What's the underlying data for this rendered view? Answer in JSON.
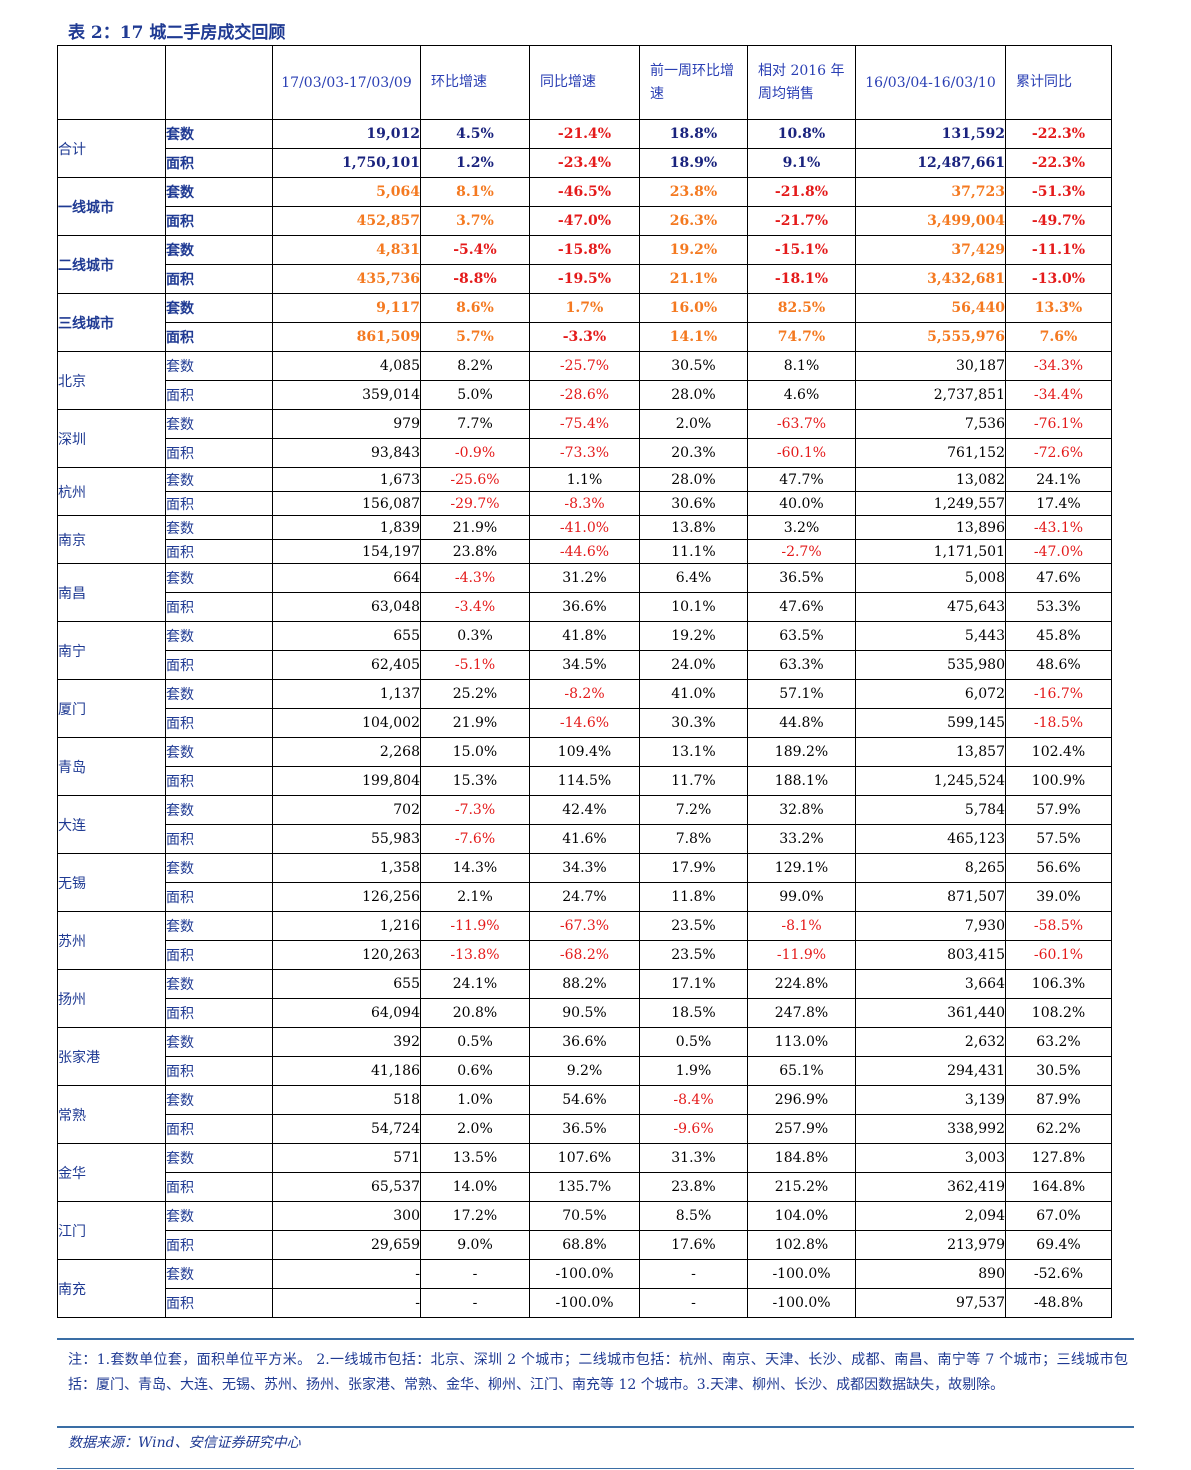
{
  "title": "表 2：17 城二手房成交回顾",
  "header": [
    "",
    "",
    "17/03/03-17/03/09",
    "环比增速",
    "同比增速",
    "前一周环比增速",
    "相对 2016 年周均销售",
    "16/03/04-16/03/10",
    "累计同比"
  ],
  "rows": [
    {
      "city": "合计",
      "style": "navy",
      "data": [
        {
          "metric": "套数",
          "v": [
            "19,012",
            "4.5%",
            "-21.4%",
            "18.8%",
            "10.8%",
            "131,592",
            "-22.3%"
          ],
          "c": [
            "n",
            "n",
            "r",
            "n",
            "n",
            "n",
            "r"
          ]
        },
        {
          "metric": "面积",
          "v": [
            "1,750,101",
            "1.2%",
            "-23.4%",
            "18.9%",
            "9.1%",
            "12,487,661",
            "-22.3%"
          ],
          "c": [
            "n",
            "n",
            "r",
            "n",
            "n",
            "n",
            "r"
          ]
        }
      ]
    },
    {
      "city": "一线城市",
      "style": "orange",
      "data": [
        {
          "metric": "套数",
          "v": [
            "5,064",
            "8.1%",
            "-46.5%",
            "23.8%",
            "-21.8%",
            "37,723",
            "-51.3%"
          ],
          "c": [
            "o",
            "o",
            "r",
            "o",
            "r",
            "o",
            "r"
          ]
        },
        {
          "metric": "面积",
          "v": [
            "452,857",
            "3.7%",
            "-47.0%",
            "26.3%",
            "-21.7%",
            "3,499,004",
            "-49.7%"
          ],
          "c": [
            "o",
            "o",
            "r",
            "o",
            "r",
            "o",
            "r"
          ]
        }
      ]
    },
    {
      "city": "二线城市",
      "style": "orange",
      "data": [
        {
          "metric": "套数",
          "v": [
            "4,831",
            "-5.4%",
            "-15.8%",
            "19.2%",
            "-15.1%",
            "37,429",
            "-11.1%"
          ],
          "c": [
            "o",
            "r",
            "r",
            "o",
            "r",
            "o",
            "r"
          ]
        },
        {
          "metric": "面积",
          "v": [
            "435,736",
            "-8.8%",
            "-19.5%",
            "21.1%",
            "-18.1%",
            "3,432,681",
            "-13.0%"
          ],
          "c": [
            "o",
            "r",
            "r",
            "o",
            "r",
            "o",
            "r"
          ]
        }
      ]
    },
    {
      "city": "三线城市",
      "style": "orange",
      "data": [
        {
          "metric": "套数",
          "v": [
            "9,117",
            "8.6%",
            "1.7%",
            "16.0%",
            "82.5%",
            "56,440",
            "13.3%"
          ],
          "c": [
            "o",
            "o",
            "o",
            "o",
            "o",
            "o",
            "o"
          ]
        },
        {
          "metric": "面积",
          "v": [
            "861,509",
            "5.7%",
            "-3.3%",
            "14.1%",
            "74.7%",
            "5,555,976",
            "7.6%"
          ],
          "c": [
            "o",
            "o",
            "r",
            "o",
            "o",
            "o",
            "o"
          ]
        }
      ]
    },
    {
      "city": "北京",
      "style": "plain",
      "data": [
        {
          "metric": "套数",
          "v": [
            "4,085",
            "8.2%",
            "-25.7%",
            "30.5%",
            "8.1%",
            "30,187",
            "-34.3%"
          ],
          "c": [
            "k",
            "k",
            "x",
            "k",
            "k",
            "k",
            "x"
          ]
        },
        {
          "metric": "面积",
          "v": [
            "359,014",
            "5.0%",
            "-28.6%",
            "28.0%",
            "4.6%",
            "2,737,851",
            "-34.4%"
          ],
          "c": [
            "k",
            "k",
            "x",
            "k",
            "k",
            "k",
            "x"
          ]
        }
      ]
    },
    {
      "city": "深圳",
      "style": "plain",
      "data": [
        {
          "metric": "套数",
          "v": [
            "979",
            "7.7%",
            "-75.4%",
            "2.0%",
            "-63.7%",
            "7,536",
            "-76.1%"
          ],
          "c": [
            "k",
            "k",
            "x",
            "k",
            "x",
            "k",
            "x"
          ]
        },
        {
          "metric": "面积",
          "v": [
            "93,843",
            "-0.9%",
            "-73.3%",
            "20.3%",
            "-60.1%",
            "761,152",
            "-72.6%"
          ],
          "c": [
            "k",
            "x",
            "x",
            "k",
            "x",
            "k",
            "x"
          ]
        }
      ]
    },
    {
      "city": "杭州",
      "style": "plain",
      "h": 24,
      "data": [
        {
          "metric": "套数",
          "v": [
            "1,673",
            "-25.6%",
            "1.1%",
            "28.0%",
            "47.7%",
            "13,082",
            "24.1%"
          ],
          "c": [
            "k",
            "x",
            "k",
            "k",
            "k",
            "k",
            "k"
          ]
        },
        {
          "metric": "面积",
          "v": [
            "156,087",
            "-29.7%",
            "-8.3%",
            "30.6%",
            "40.0%",
            "1,249,557",
            "17.4%"
          ],
          "c": [
            "k",
            "x",
            "x",
            "k",
            "k",
            "k",
            "k"
          ]
        }
      ]
    },
    {
      "city": "南京",
      "style": "plain",
      "h": 24,
      "data": [
        {
          "metric": "套数",
          "v": [
            "1,839",
            "21.9%",
            "-41.0%",
            "13.8%",
            "3.2%",
            "13,896",
            "-43.1%"
          ],
          "c": [
            "k",
            "k",
            "x",
            "k",
            "k",
            "k",
            "x"
          ]
        },
        {
          "metric": "面积",
          "v": [
            "154,197",
            "23.8%",
            "-44.6%",
            "11.1%",
            "-2.7%",
            "1,171,501",
            "-47.0%"
          ],
          "c": [
            "k",
            "k",
            "x",
            "k",
            "x",
            "k",
            "x"
          ]
        }
      ]
    },
    {
      "city": "南昌",
      "style": "plain",
      "data": [
        {
          "metric": "套数",
          "v": [
            "664",
            "-4.3%",
            "31.2%",
            "6.4%",
            "36.5%",
            "5,008",
            "47.6%"
          ],
          "c": [
            "k",
            "x",
            "k",
            "k",
            "k",
            "k",
            "k"
          ]
        },
        {
          "metric": "面积",
          "v": [
            "63,048",
            "-3.4%",
            "36.6%",
            "10.1%",
            "47.6%",
            "475,643",
            "53.3%"
          ],
          "c": [
            "k",
            "x",
            "k",
            "k",
            "k",
            "k",
            "k"
          ]
        }
      ]
    },
    {
      "city": "南宁",
      "style": "plain",
      "data": [
        {
          "metric": "套数",
          "v": [
            "655",
            "0.3%",
            "41.8%",
            "19.2%",
            "63.5%",
            "5,443",
            "45.8%"
          ],
          "c": [
            "k",
            "k",
            "k",
            "k",
            "k",
            "k",
            "k"
          ]
        },
        {
          "metric": "面积",
          "v": [
            "62,405",
            "-5.1%",
            "34.5%",
            "24.0%",
            "63.3%",
            "535,980",
            "48.6%"
          ],
          "c": [
            "k",
            "x",
            "k",
            "k",
            "k",
            "k",
            "k"
          ]
        }
      ]
    },
    {
      "city": "厦门",
      "style": "plain",
      "data": [
        {
          "metric": "套数",
          "v": [
            "1,137",
            "25.2%",
            "-8.2%",
            "41.0%",
            "57.1%",
            "6,072",
            "-16.7%"
          ],
          "c": [
            "k",
            "k",
            "x",
            "k",
            "k",
            "k",
            "x"
          ]
        },
        {
          "metric": "面积",
          "v": [
            "104,002",
            "21.9%",
            "-14.6%",
            "30.3%",
            "44.8%",
            "599,145",
            "-18.5%"
          ],
          "c": [
            "k",
            "k",
            "x",
            "k",
            "k",
            "k",
            "x"
          ]
        }
      ]
    },
    {
      "city": "青岛",
      "style": "plain",
      "data": [
        {
          "metric": "套数",
          "v": [
            "2,268",
            "15.0%",
            "109.4%",
            "13.1%",
            "189.2%",
            "13,857",
            "102.4%"
          ],
          "c": [
            "k",
            "k",
            "k",
            "k",
            "k",
            "k",
            "k"
          ]
        },
        {
          "metric": "面积",
          "v": [
            "199,804",
            "15.3%",
            "114.5%",
            "11.7%",
            "188.1%",
            "1,245,524",
            "100.9%"
          ],
          "c": [
            "k",
            "k",
            "k",
            "k",
            "k",
            "k",
            "k"
          ]
        }
      ]
    },
    {
      "city": "大连",
      "style": "plain",
      "data": [
        {
          "metric": "套数",
          "v": [
            "702",
            "-7.3%",
            "42.4%",
            "7.2%",
            "32.8%",
            "5,784",
            "57.9%"
          ],
          "c": [
            "k",
            "x",
            "k",
            "k",
            "k",
            "k",
            "k"
          ]
        },
        {
          "metric": "面积",
          "v": [
            "55,983",
            "-7.6%",
            "41.6%",
            "7.8%",
            "33.2%",
            "465,123",
            "57.5%"
          ],
          "c": [
            "k",
            "x",
            "k",
            "k",
            "k",
            "k",
            "k"
          ]
        }
      ]
    },
    {
      "city": "无锡",
      "style": "plain",
      "data": [
        {
          "metric": "套数",
          "v": [
            "1,358",
            "14.3%",
            "34.3%",
            "17.9%",
            "129.1%",
            "8,265",
            "56.6%"
          ],
          "c": [
            "k",
            "k",
            "k",
            "k",
            "k",
            "k",
            "k"
          ]
        },
        {
          "metric": "面积",
          "v": [
            "126,256",
            "2.1%",
            "24.7%",
            "11.8%",
            "99.0%",
            "871,507",
            "39.0%"
          ],
          "c": [
            "k",
            "k",
            "k",
            "k",
            "k",
            "k",
            "k"
          ]
        }
      ]
    },
    {
      "city": "苏州",
      "style": "plain",
      "data": [
        {
          "metric": "套数",
          "v": [
            "1,216",
            "-11.9%",
            "-67.3%",
            "23.5%",
            "-8.1%",
            "7,930",
            "-58.5%"
          ],
          "c": [
            "k",
            "x",
            "x",
            "k",
            "x",
            "k",
            "x"
          ]
        },
        {
          "metric": "面积",
          "v": [
            "120,263",
            "-13.8%",
            "-68.2%",
            "23.5%",
            "-11.9%",
            "803,415",
            "-60.1%"
          ],
          "c": [
            "k",
            "x",
            "x",
            "k",
            "x",
            "k",
            "x"
          ]
        }
      ]
    },
    {
      "city": "扬州",
      "style": "plain",
      "data": [
        {
          "metric": "套数",
          "v": [
            "655",
            "24.1%",
            "88.2%",
            "17.1%",
            "224.8%",
            "3,664",
            "106.3%"
          ],
          "c": [
            "k",
            "k",
            "k",
            "k",
            "k",
            "k",
            "k"
          ]
        },
        {
          "metric": "面积",
          "v": [
            "64,094",
            "20.8%",
            "90.5%",
            "18.5%",
            "247.8%",
            "361,440",
            "108.2%"
          ],
          "c": [
            "k",
            "k",
            "k",
            "k",
            "k",
            "k",
            "k"
          ]
        }
      ]
    },
    {
      "city": "张家港",
      "style": "plain",
      "data": [
        {
          "metric": "套数",
          "v": [
            "392",
            "0.5%",
            "36.6%",
            "0.5%",
            "113.0%",
            "2,632",
            "63.2%"
          ],
          "c": [
            "k",
            "k",
            "k",
            "k",
            "k",
            "k",
            "k"
          ]
        },
        {
          "metric": "面积",
          "v": [
            "41,186",
            "0.6%",
            "9.2%",
            "1.9%",
            "65.1%",
            "294,431",
            "30.5%"
          ],
          "c": [
            "k",
            "k",
            "k",
            "k",
            "k",
            "k",
            "k"
          ]
        }
      ]
    },
    {
      "city": "常熟",
      "style": "plain",
      "data": [
        {
          "metric": "套数",
          "v": [
            "518",
            "1.0%",
            "54.6%",
            "-8.4%",
            "296.9%",
            "3,139",
            "87.9%"
          ],
          "c": [
            "k",
            "k",
            "k",
            "x",
            "k",
            "k",
            "k"
          ]
        },
        {
          "metric": "面积",
          "v": [
            "54,724",
            "2.0%",
            "36.5%",
            "-9.6%",
            "257.9%",
            "338,992",
            "62.2%"
          ],
          "c": [
            "k",
            "k",
            "k",
            "x",
            "k",
            "k",
            "k"
          ]
        }
      ]
    },
    {
      "city": "金华",
      "style": "plain",
      "data": [
        {
          "metric": "套数",
          "v": [
            "571",
            "13.5%",
            "107.6%",
            "31.3%",
            "184.8%",
            "3,003",
            "127.8%"
          ],
          "c": [
            "k",
            "k",
            "k",
            "k",
            "k",
            "k",
            "k"
          ]
        },
        {
          "metric": "面积",
          "v": [
            "65,537",
            "14.0%",
            "135.7%",
            "23.8%",
            "215.2%",
            "362,419",
            "164.8%"
          ],
          "c": [
            "k",
            "k",
            "k",
            "k",
            "k",
            "k",
            "k"
          ]
        }
      ]
    },
    {
      "city": "江门",
      "style": "plain",
      "data": [
        {
          "metric": "套数",
          "v": [
            "300",
            "17.2%",
            "70.5%",
            "8.5%",
            "104.0%",
            "2,094",
            "67.0%"
          ],
          "c": [
            "k",
            "k",
            "k",
            "k",
            "k",
            "k",
            "k"
          ]
        },
        {
          "metric": "面积",
          "v": [
            "29,659",
            "9.0%",
            "68.8%",
            "17.6%",
            "102.8%",
            "213,979",
            "69.4%"
          ],
          "c": [
            "k",
            "k",
            "k",
            "k",
            "k",
            "k",
            "k"
          ]
        }
      ]
    },
    {
      "city": "南充",
      "style": "plain",
      "data": [
        {
          "metric": "套数",
          "v": [
            "-",
            "-",
            "-100.0%",
            "-",
            "-100.0%",
            "890",
            "-52.6%"
          ],
          "c": [
            "k",
            "k",
            "k",
            "k",
            "k",
            "k",
            "k"
          ]
        },
        {
          "metric": "面积",
          "v": [
            "-",
            "-",
            "-100.0%",
            "-",
            "-100.0%",
            "97,537",
            "-48.8%"
          ],
          "c": [
            "k",
            "k",
            "k",
            "k",
            "k",
            "k",
            "k"
          ]
        }
      ]
    }
  ],
  "note": "注：1.套数单位套，面积单位平方米。 2.一线城市包括：北京、深圳 2 个城市；二线城市包括：杭州、南京、天津、长沙、成都、南昌、南宁等 7 个城市；三线城市包括：厦门、青岛、大连、无锡、苏州、扬州、张家港、常熟、金华、柳州、江门、南充等 12 个城市。3.天津、柳州、长沙、成都因数据缺失，故剔除。",
  "source": "数据来源：Wind、安信证券研究中心"
}
